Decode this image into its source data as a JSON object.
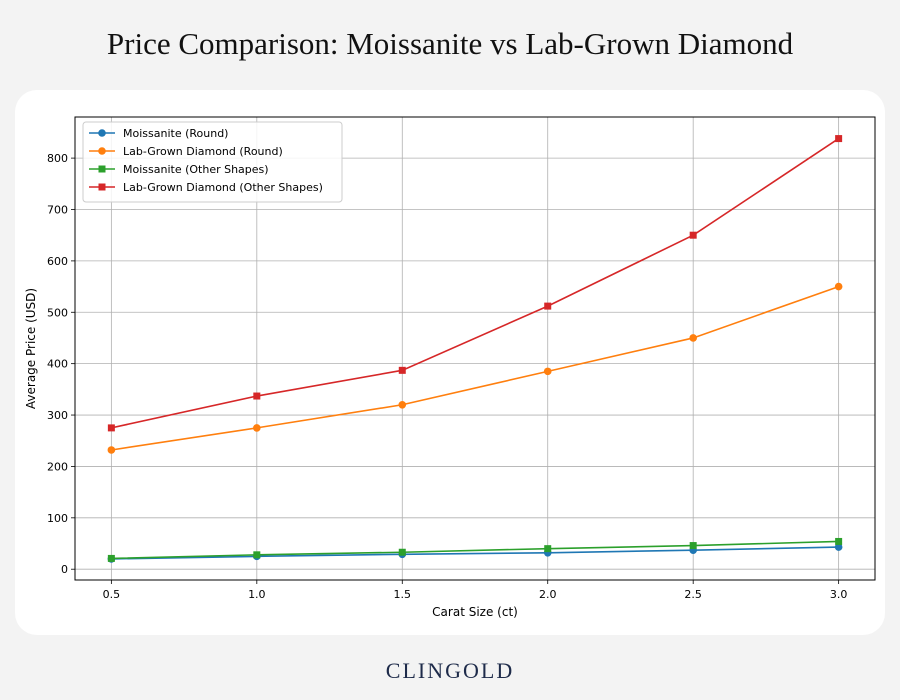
{
  "header": {
    "title": "Price Comparison: Moissanite vs Lab-Grown Diamond"
  },
  "footer": {
    "brand": "CLINGOLD"
  },
  "chart_data": {
    "type": "line",
    "title": "",
    "xlabel": "Carat Size (ct)",
    "ylabel": "Average Price (USD)",
    "x": [
      0.5,
      1.0,
      1.5,
      2.0,
      2.5,
      3.0
    ],
    "x_tick_labels": [
      "0.5",
      "1.0",
      "1.5",
      "2.0",
      "2.5",
      "3.0"
    ],
    "y_ticks": [
      0,
      100,
      200,
      300,
      400,
      500,
      600,
      700,
      800
    ],
    "xlim": [
      0.375,
      3.125
    ],
    "ylim": [
      -21,
      880
    ],
    "grid": true,
    "legend_position": "top-left",
    "series": [
      {
        "name": "Moissanite (Round)",
        "color": "#1f77b4",
        "marker": "circle",
        "values": [
          20,
          25,
          29,
          32,
          37,
          43
        ]
      },
      {
        "name": "Lab-Grown Diamond (Round)",
        "color": "#ff7f0e",
        "marker": "circle",
        "values": [
          232,
          275,
          320,
          385,
          450,
          550
        ]
      },
      {
        "name": "Moissanite (Other Shapes)",
        "color": "#2ca02c",
        "marker": "square",
        "values": [
          21,
          28,
          33,
          40,
          46,
          54
        ]
      },
      {
        "name": "Lab-Grown Diamond (Other Shapes)",
        "color": "#d62728",
        "marker": "square",
        "values": [
          275,
          337,
          387,
          512,
          650,
          838
        ]
      }
    ]
  }
}
